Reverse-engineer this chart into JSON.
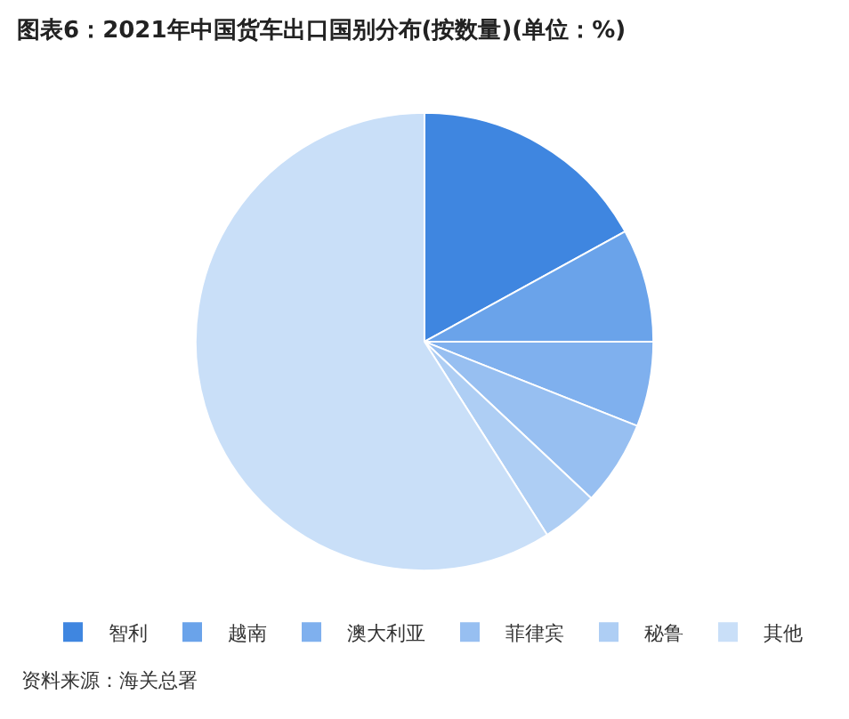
{
  "chart_data": {
    "type": "pie",
    "title": "图表6：2021年中国货车出口国别分布(按数量)(单位：%)",
    "categories": [
      "智利",
      "越南",
      "澳大利亚",
      "菲律宾",
      "秘鲁",
      "其他"
    ],
    "values": [
      17,
      8,
      6,
      6,
      4,
      59
    ],
    "colors": [
      "#3f86e0",
      "#6aa3ea",
      "#7fb0ee",
      "#97bff1",
      "#aecef4",
      "#c9dff8"
    ],
    "legend": "bottom",
    "annotations": [
      "资料来源：海关总署"
    ]
  }
}
